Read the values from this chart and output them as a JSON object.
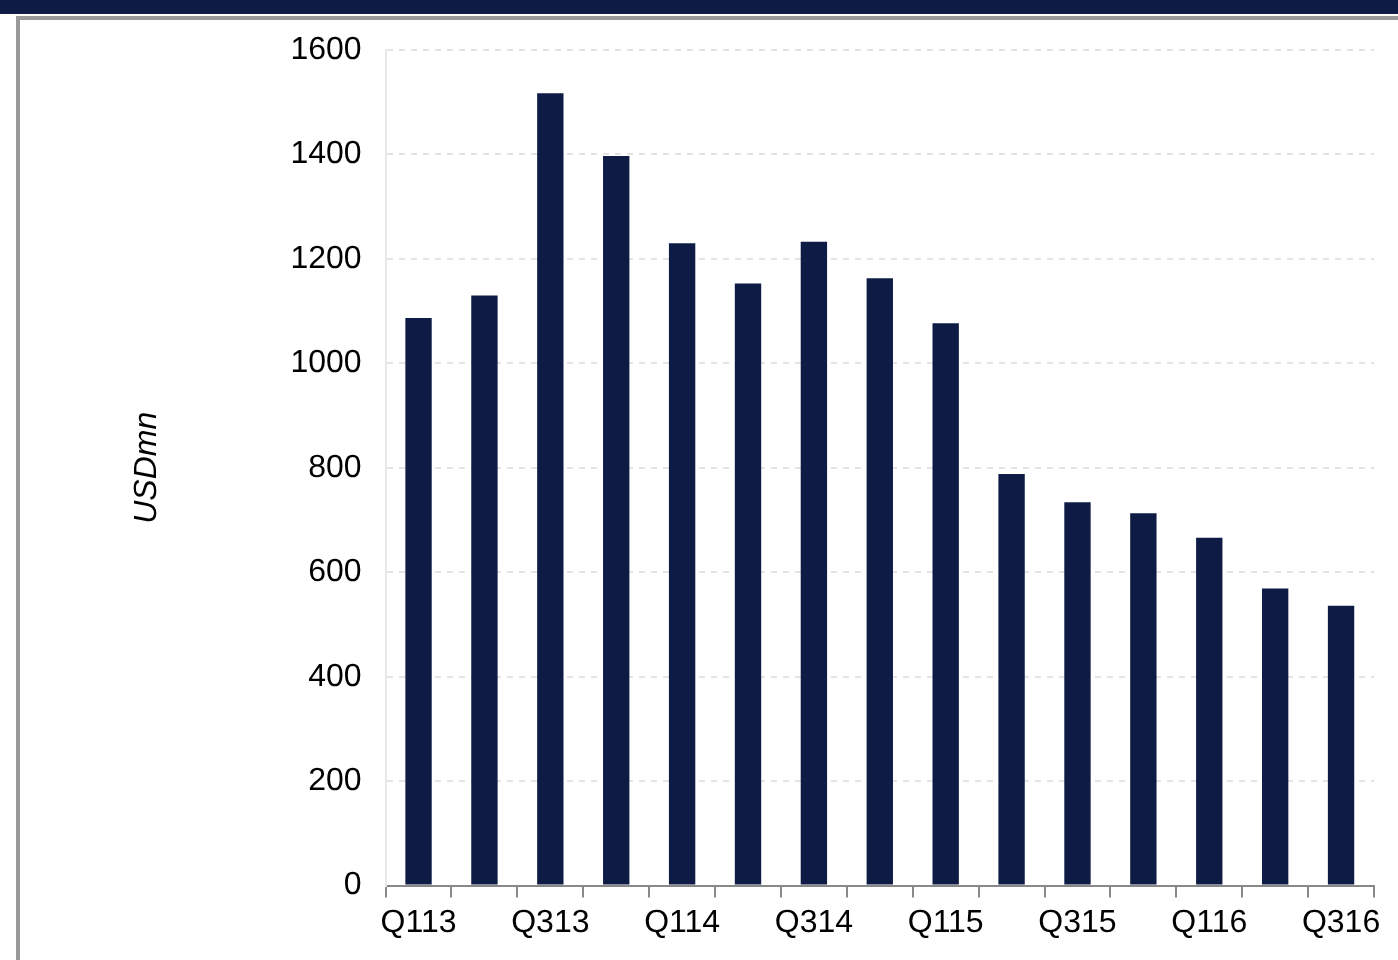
{
  "chart_data": {
    "type": "bar",
    "ylabel": "USDmn",
    "categories": [
      "Q113",
      null,
      "Q313",
      null,
      "Q114",
      null,
      "Q314",
      null,
      "Q115",
      null,
      "Q315",
      null,
      "Q116",
      null,
      "Q316"
    ],
    "values": [
      1087,
      1130,
      1517,
      1397,
      1230,
      1153,
      1233,
      1163,
      1077,
      788,
      734,
      713,
      666,
      569,
      536
    ],
    "color": "#0e1b45",
    "ylim": [
      0,
      1600
    ],
    "yticks": [
      0,
      200,
      400,
      600,
      800,
      1000,
      1200,
      1400,
      1600
    ],
    "grid": "y",
    "legend": false
  }
}
